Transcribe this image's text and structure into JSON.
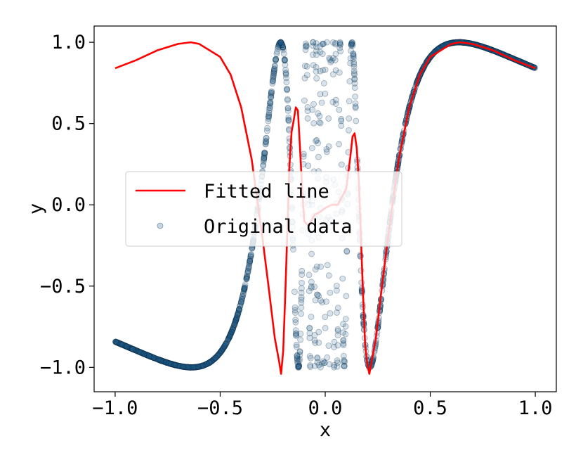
{
  "chart_data": {
    "type": "scatter",
    "xlabel": "x",
    "ylabel": "y",
    "xlim": [
      -1.1,
      1.1
    ],
    "ylim": [
      -1.15,
      1.1
    ],
    "xticks": [
      {
        "value": -1.0,
        "label": "−1.0"
      },
      {
        "value": -0.5,
        "label": "−0.5"
      },
      {
        "value": 0.0,
        "label": "0.0"
      },
      {
        "value": 0.5,
        "label": "0.5"
      },
      {
        "value": 1.0,
        "label": "1.0"
      }
    ],
    "yticks": [
      {
        "value": -1.0,
        "label": "−1.0"
      },
      {
        "value": -0.5,
        "label": "−0.5"
      },
      {
        "value": 0.0,
        "label": "0.0"
      },
      {
        "value": 0.5,
        "label": "0.5"
      },
      {
        "value": 1.0,
        "label": "1.0"
      }
    ],
    "grid": false,
    "legend": {
      "position": "center-left",
      "entries": [
        {
          "label": "Fitted line",
          "kind": "line",
          "color": "#ff0000"
        },
        {
          "label": "Original data",
          "kind": "marker",
          "color": "#1f5f8b"
        }
      ]
    },
    "series": [
      {
        "name": "Original data",
        "kind": "scatter",
        "color": "#1f5f8b",
        "function": "y = sin(1/x)",
        "x_range": [
          -1.0,
          1.0
        ],
        "points": 2000
      },
      {
        "name": "Fitted line",
        "kind": "line",
        "color": "#ff0000",
        "x": [
          -1.0,
          -0.9,
          -0.8,
          -0.7,
          -0.64,
          -0.6,
          -0.5,
          -0.45,
          -0.4,
          -0.35,
          -0.3,
          -0.27,
          -0.24,
          -0.22,
          -0.21,
          -0.2,
          -0.19,
          -0.18,
          -0.17,
          -0.16,
          -0.15,
          -0.14,
          -0.13,
          -0.12,
          -0.11,
          -0.1,
          -0.08,
          -0.05,
          -0.02,
          0.0,
          0.03,
          0.06,
          0.08,
          0.1,
          0.12,
          0.13,
          0.14,
          0.15,
          0.16,
          0.17,
          0.18,
          0.19,
          0.2,
          0.21,
          0.22,
          0.24,
          0.27,
          0.3,
          0.35,
          0.4,
          0.45,
          0.5,
          0.6,
          0.64,
          0.7,
          0.8,
          0.9,
          1.0
        ],
        "y": [
          0.84,
          0.89,
          0.95,
          0.99,
          1.0,
          0.99,
          0.91,
          0.8,
          0.6,
          0.28,
          -0.19,
          -0.5,
          -0.82,
          -0.96,
          -1.04,
          -0.9,
          -0.55,
          -0.15,
          0.25,
          0.45,
          0.52,
          0.6,
          0.58,
          0.35,
          0.1,
          -0.1,
          -0.13,
          -0.06,
          -0.04,
          -0.02,
          0.0,
          0.0,
          0.05,
          0.1,
          0.3,
          0.42,
          0.44,
          0.35,
          0.15,
          -0.2,
          -0.55,
          -0.86,
          -0.98,
          -1.04,
          -0.97,
          -0.83,
          -0.5,
          -0.19,
          0.28,
          0.6,
          0.8,
          0.91,
          0.99,
          1.0,
          0.99,
          0.95,
          0.89,
          0.84
        ]
      }
    ]
  }
}
